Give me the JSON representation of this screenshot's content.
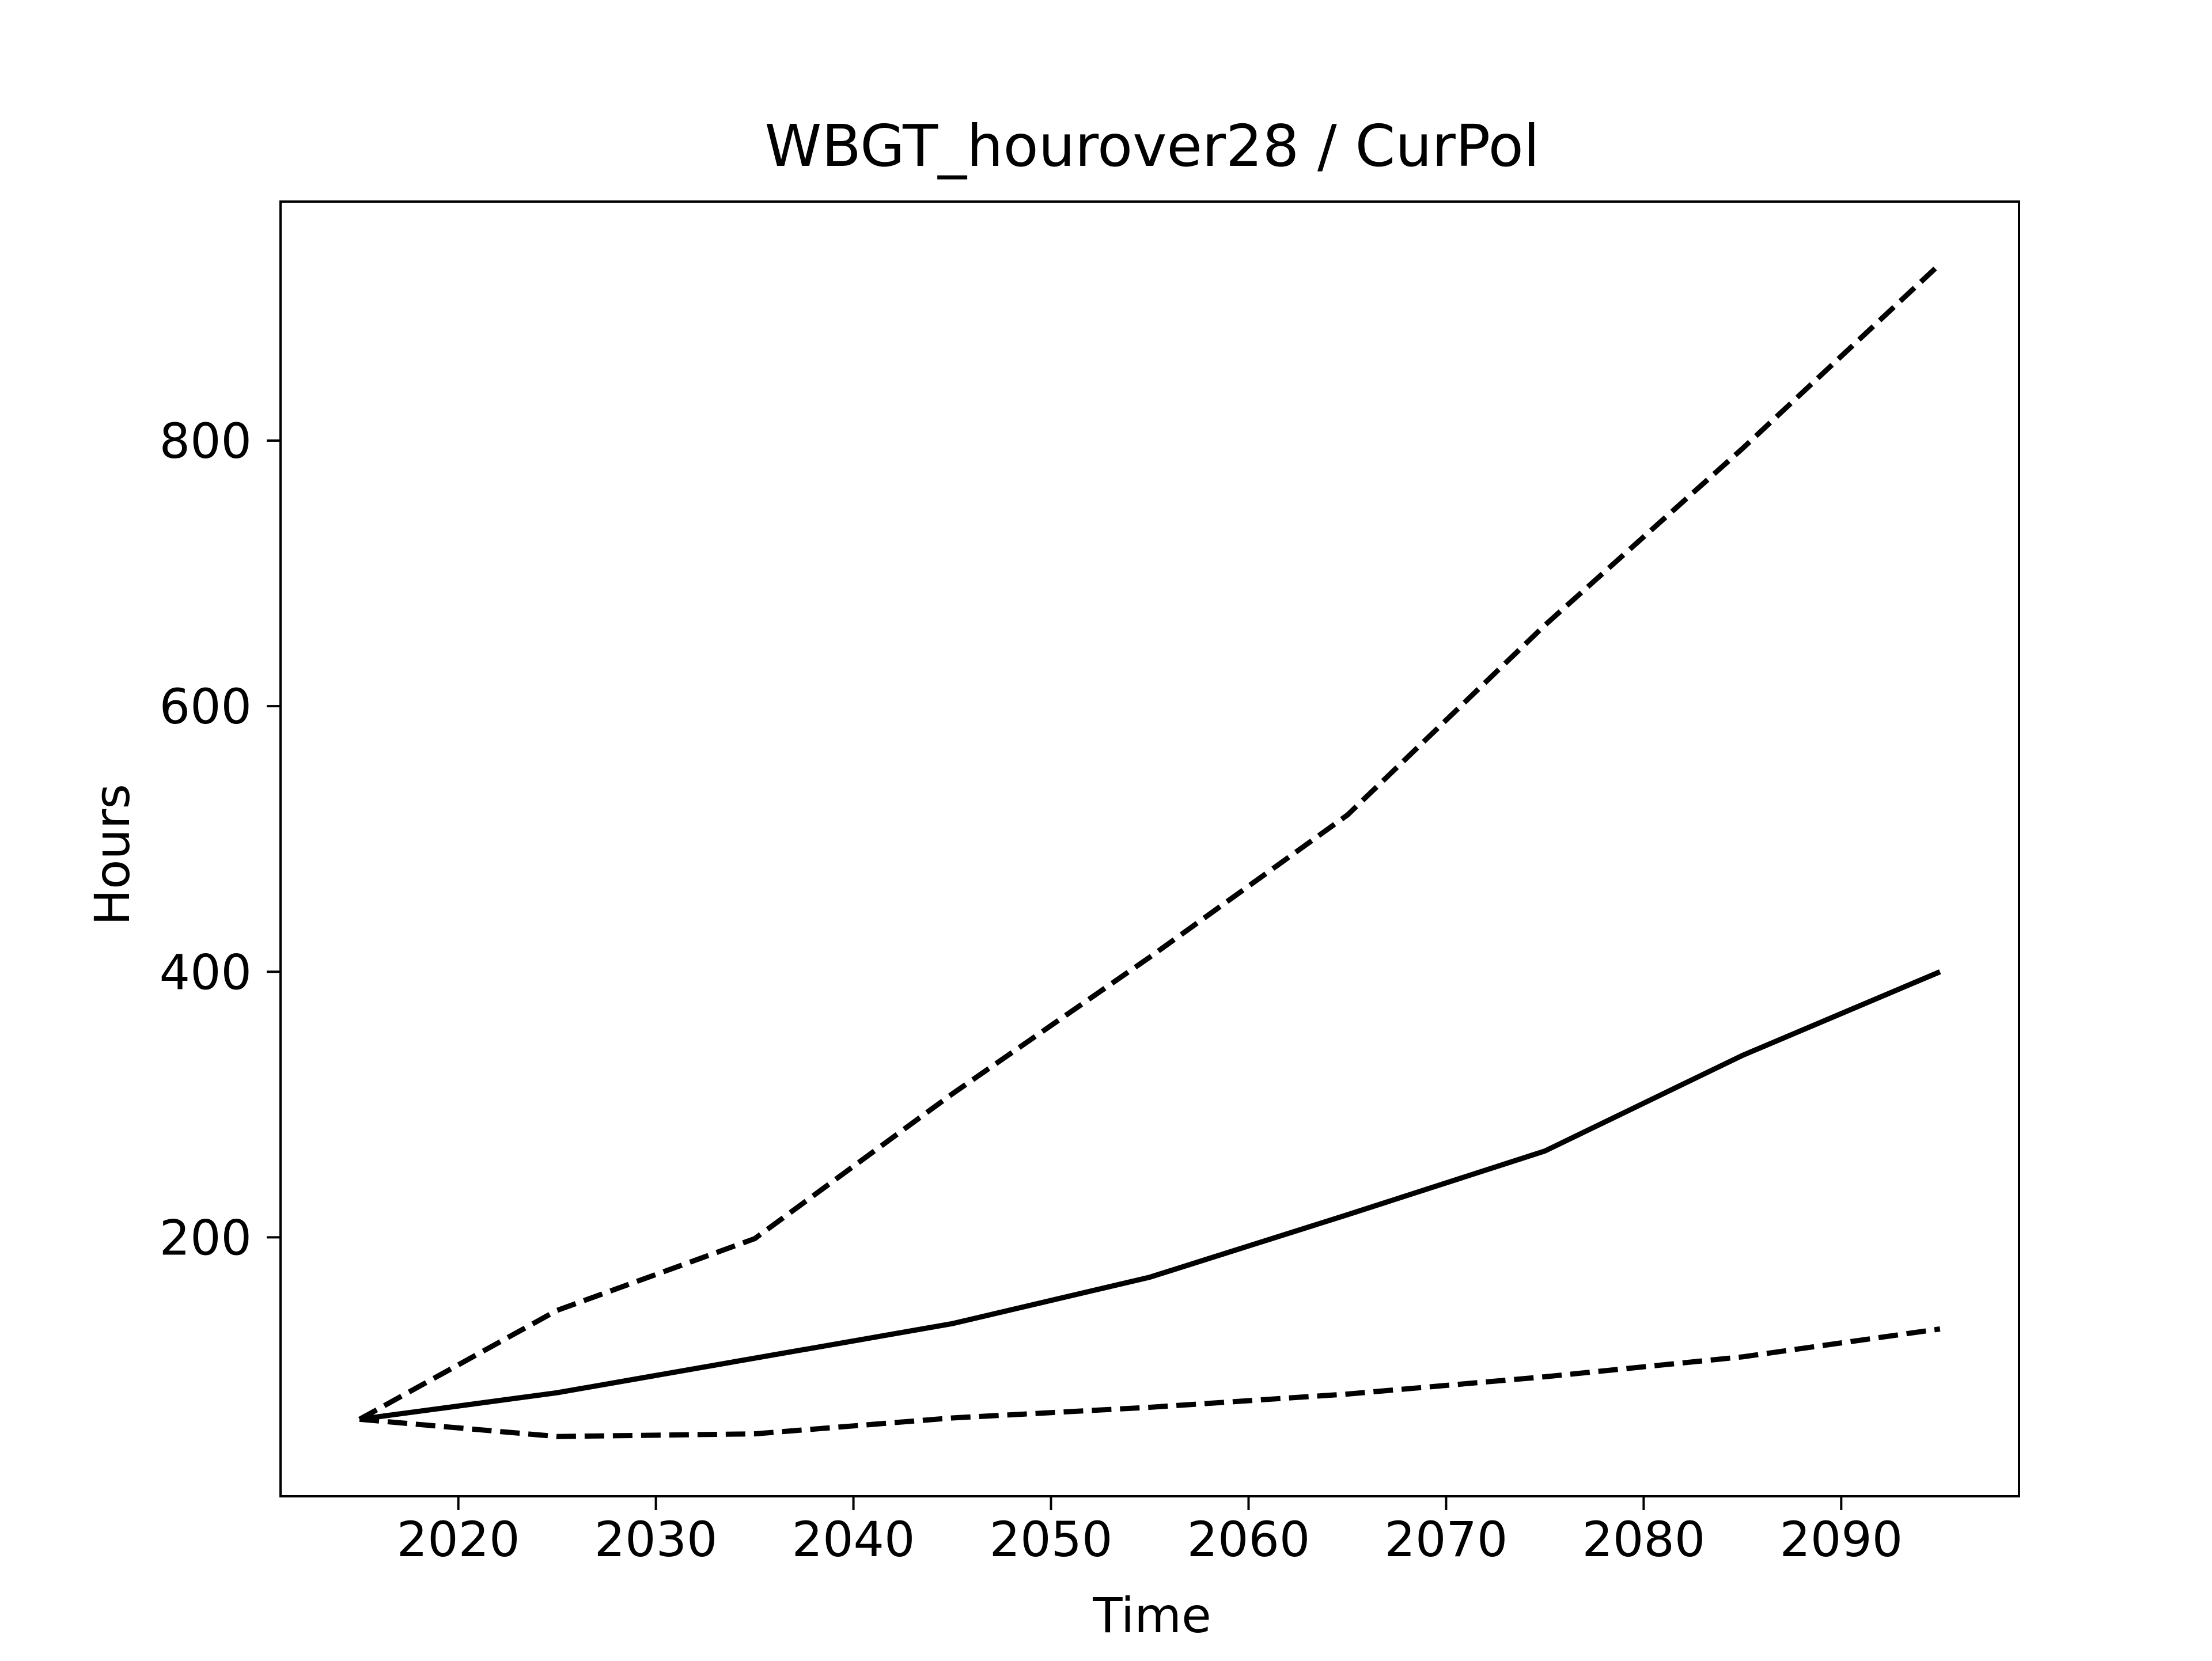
{
  "chart_data": {
    "type": "line",
    "title": "WBGT_hourover28 / CurPol",
    "xlabel": "Time",
    "ylabel": "Hours",
    "xlim": [
      2011,
      2099
    ],
    "ylim": [
      5,
      980
    ],
    "x_ticks": [
      2020,
      2030,
      2040,
      2050,
      2060,
      2070,
      2080,
      2090
    ],
    "y_ticks": [
      200,
      400,
      600,
      800
    ],
    "grid": false,
    "x": [
      2015,
      2025,
      2035,
      2045,
      2055,
      2065,
      2075,
      2085,
      2095
    ],
    "series": [
      {
        "style": "solid",
        "color": "#000000",
        "values": [
          63,
          83,
          109,
          135,
          170,
          217,
          265,
          337,
          400
        ]
      },
      {
        "style": "dashed",
        "color": "#000000",
        "values": [
          63,
          145,
          199,
          308,
          411,
          518,
          661,
          794,
          933
        ]
      },
      {
        "style": "dashed",
        "color": "#000000",
        "values": [
          63,
          50,
          52,
          64,
          72,
          82,
          95,
          110,
          131
        ]
      }
    ]
  }
}
